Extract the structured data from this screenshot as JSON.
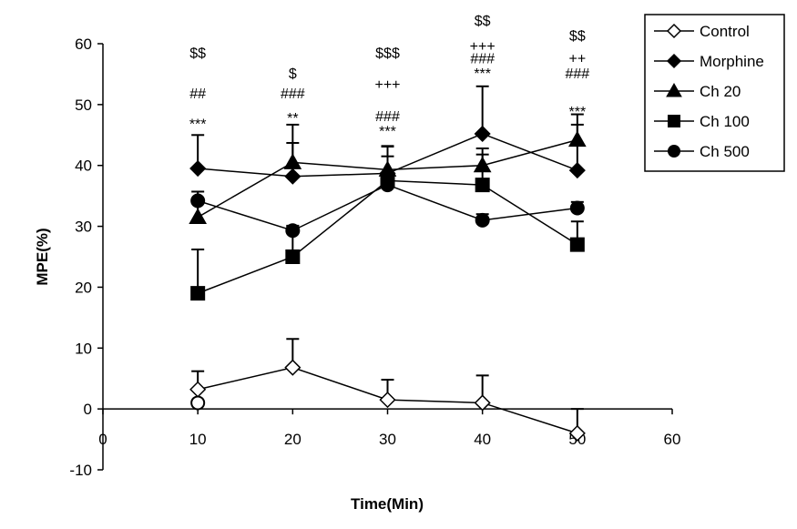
{
  "chart_data": {
    "type": "line",
    "xlabel": "Time(Min)",
    "ylabel": "MPE(%)",
    "xlim": [
      0,
      60
    ],
    "ylim": [
      -10,
      60
    ],
    "x_ticks": [
      0,
      10,
      20,
      30,
      40,
      50,
      60
    ],
    "y_ticks": [
      -10,
      0,
      10,
      20,
      30,
      40,
      50,
      60
    ],
    "grid": false,
    "legend_position": "top-right",
    "x": [
      10,
      20,
      30,
      40,
      50
    ],
    "series": [
      {
        "name": "Control",
        "marker": "diamond-open",
        "values": [
          3.2,
          6.8,
          1.5,
          1.0,
          -4.0
        ],
        "error": [
          3.0,
          4.7,
          3.3,
          4.5,
          4.0
        ]
      },
      {
        "name": "Morphine",
        "marker": "diamond-filled",
        "values": [
          39.5,
          38.2,
          38.7,
          45.2,
          39.2
        ],
        "error": [
          5.5,
          8.5,
          4.5,
          7.8,
          7.5
        ]
      },
      {
        "name": "Ch 20",
        "marker": "triangle",
        "values": [
          31.5,
          40.5,
          39.3,
          40.0,
          44.2
        ],
        "error": [
          3.0,
          3.2,
          3.8,
          2.8,
          4.2
        ]
      },
      {
        "name": "Ch 100",
        "marker": "square",
        "values": [
          19.0,
          25.0,
          37.5,
          36.8,
          27.0
        ],
        "error": [
          7.2,
          5.0,
          4.0,
          5.0,
          3.8
        ]
      },
      {
        "name": "Ch 500",
        "marker": "circle",
        "values": [
          34.2,
          29.3,
          36.8,
          31.0,
          33.0
        ],
        "error": [
          1.5,
          0.8,
          1.0,
          1.0,
          1.0
        ]
      }
    ],
    "extra_points": [
      {
        "series": "Ch 500",
        "marker": "circle-open",
        "x": 10,
        "y": 1.0
      }
    ],
    "annotations": [
      {
        "x": 10,
        "y": 57.7,
        "text": "$$"
      },
      {
        "x": 10,
        "y": 51.0,
        "text": "##"
      },
      {
        "x": 10,
        "y": 46.0,
        "text": "***"
      },
      {
        "x": 20,
        "y": 54.3,
        "text": "$"
      },
      {
        "x": 20,
        "y": 51.0,
        "text": "###"
      },
      {
        "x": 20,
        "y": 47.0,
        "text": "**"
      },
      {
        "x": 30,
        "y": 57.7,
        "text": "$$$"
      },
      {
        "x": 30,
        "y": 52.5,
        "text": "+++"
      },
      {
        "x": 30,
        "y": 47.3,
        "text": "###"
      },
      {
        "x": 30,
        "y": 44.8,
        "text": "***"
      },
      {
        "x": 40,
        "y": 63.0,
        "text": "$$"
      },
      {
        "x": 40,
        "y": 58.8,
        "text": "+++"
      },
      {
        "x": 40,
        "y": 56.8,
        "text": "###"
      },
      {
        "x": 40,
        "y": 54.3,
        "text": "***"
      },
      {
        "x": 50,
        "y": 60.5,
        "text": "$$"
      },
      {
        "x": 50,
        "y": 56.8,
        "text": "++"
      },
      {
        "x": 50,
        "y": 54.3,
        "text": "###"
      },
      {
        "x": 50,
        "y": 48.0,
        "text": "***"
      }
    ]
  }
}
